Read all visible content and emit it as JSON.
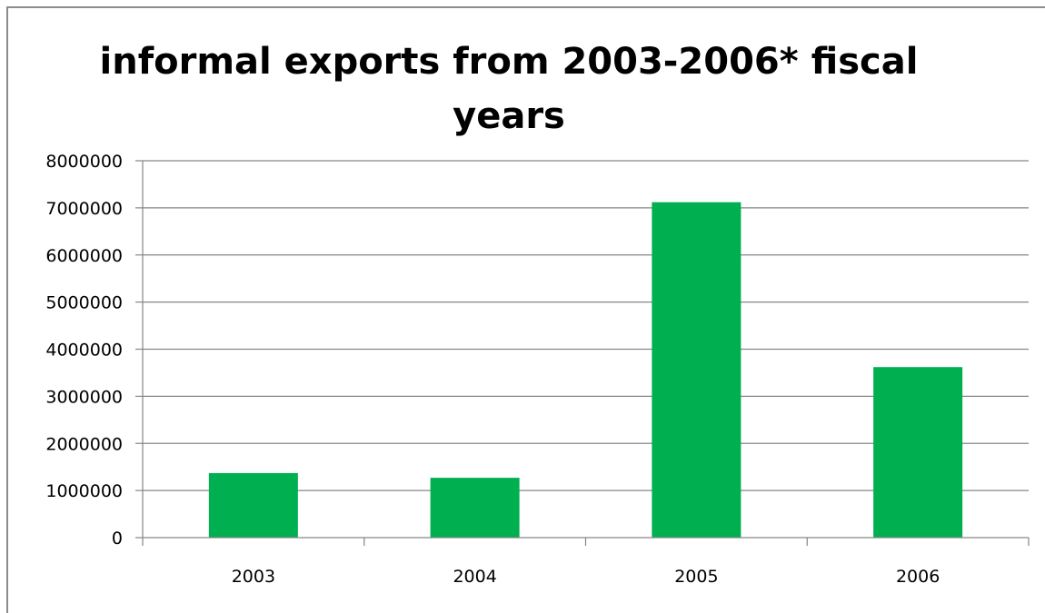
{
  "chart_data": {
    "type": "bar",
    "title_lines": [
      "informal exports from 2003-2006* fiscal",
      "years"
    ],
    "categories": [
      "2003",
      "2004",
      "2005",
      "2006"
    ],
    "values": [
      1370000,
      1270000,
      7120000,
      3620000
    ],
    "ylim": [
      0,
      8000000
    ],
    "yticks": [
      "0",
      "1000000",
      "2000000",
      "3000000",
      "4000000",
      "5000000",
      "6000000",
      "7000000",
      "8000000"
    ],
    "xlabel": "",
    "ylabel": "",
    "grid": true,
    "legend": "none",
    "bar_color": "#00b050",
    "grid_color": "#868686"
  }
}
